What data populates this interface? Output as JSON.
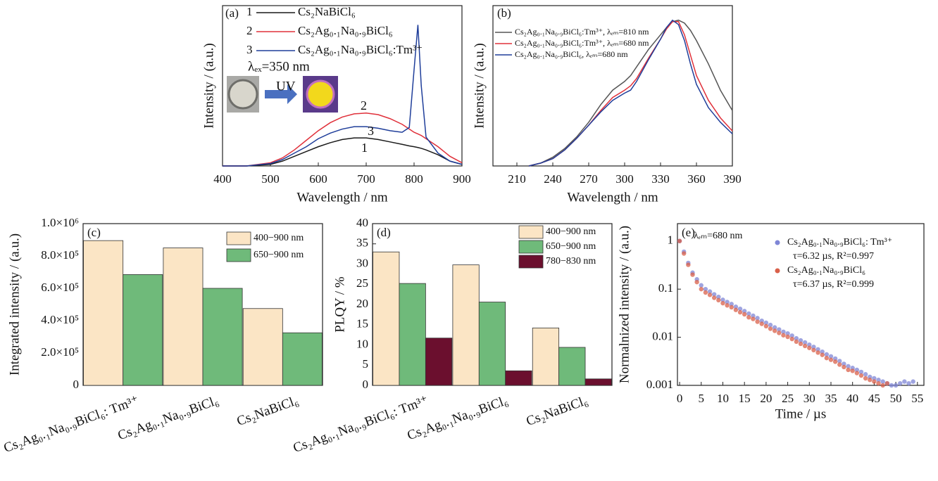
{
  "chart_data": [
    {
      "type": "line",
      "panel_label": "(a)",
      "x_label": "Wavelength / nm",
      "y_label": "Intensity / (a.u.)",
      "xlim": [
        400,
        900
      ],
      "xticks": [
        400,
        500,
        600,
        700,
        800,
        900
      ],
      "ylim": [
        0,
        100
      ],
      "x": [
        400,
        450,
        500,
        525,
        550,
        575,
        600,
        625,
        650,
        675,
        700,
        725,
        750,
        775,
        790,
        800,
        808,
        815,
        825,
        850,
        875,
        900
      ],
      "curve_labels": [
        "1",
        "2",
        "3"
      ],
      "annotations": [
        "λₑₓ=350 nm",
        "UV"
      ],
      "series": [
        {
          "name": "Cs₂NaBiCl₆",
          "color": "#1a1a1a",
          "values": [
            0,
            0,
            1,
            3,
            6,
            9,
            12,
            14.5,
            16.5,
            17.5,
            17.5,
            16.5,
            15,
            13.5,
            12.5,
            12,
            11.5,
            11,
            10,
            7,
            3,
            1
          ]
        },
        {
          "name": "Cs₂Ag₀.₁Na₀.₉BiCl₆",
          "color": "#e0303a",
          "values": [
            0,
            0,
            2,
            5,
            10,
            16,
            22,
            27,
            30.5,
            32.5,
            33,
            32,
            29.5,
            26,
            23,
            21,
            20,
            19,
            17,
            12,
            6,
            2
          ]
        },
        {
          "name": "Cs₂Ag₀.₁Na₀.₉BiCl₆:Tm³⁺",
          "color": "#1f3e9a",
          "values": [
            0,
            0,
            1.5,
            4,
            8,
            12,
            17,
            20.5,
            23,
            24.5,
            24.5,
            23.5,
            22,
            21,
            24,
            60,
            88,
            50,
            18,
            8,
            3,
            1
          ]
        }
      ]
    },
    {
      "type": "line",
      "panel_label": "(b)",
      "x_label": "Wavelength / nm",
      "y_label": "Intensity / (a.u.)",
      "xlim": [
        190,
        390
      ],
      "xticks": [
        210,
        240,
        270,
        300,
        330,
        360,
        390
      ],
      "ylim": [
        0,
        1.1
      ],
      "x": [
        220,
        230,
        240,
        250,
        260,
        270,
        280,
        290,
        300,
        305,
        310,
        320,
        330,
        335,
        340,
        345,
        350,
        355,
        360,
        370,
        380,
        390
      ],
      "series": [
        {
          "name": "Cs₂Ag₀.₁Na₀.₉BiCl₆:Tm³⁺, λₑₘ=810 nm",
          "color": "#555555",
          "values": [
            0,
            0.02,
            0.06,
            0.12,
            0.2,
            0.3,
            0.42,
            0.52,
            0.58,
            0.62,
            0.68,
            0.8,
            0.9,
            0.95,
            0.99,
            1.0,
            0.98,
            0.93,
            0.86,
            0.7,
            0.52,
            0.38
          ]
        },
        {
          "name": "Cs₂Ag₀.₁Na₀.₉BiCl₆:Tm³⁺, λₑₘ=680 nm",
          "color": "#e0303a",
          "values": [
            0,
            0.02,
            0.05,
            0.11,
            0.19,
            0.28,
            0.38,
            0.47,
            0.52,
            0.55,
            0.6,
            0.74,
            0.87,
            0.94,
            0.99,
            0.99,
            0.9,
            0.76,
            0.62,
            0.45,
            0.33,
            0.24
          ]
        },
        {
          "name": "Cs₂Ag₀.₁Na₀.₉BiCl₆, λₑₘ=680 nm",
          "color": "#1f3e9a",
          "values": [
            0,
            0.02,
            0.05,
            0.11,
            0.19,
            0.28,
            0.37,
            0.45,
            0.5,
            0.52,
            0.58,
            0.73,
            0.87,
            0.95,
            1.0,
            0.97,
            0.86,
            0.7,
            0.56,
            0.4,
            0.3,
            0.22
          ]
        }
      ]
    },
    {
      "type": "bar",
      "panel_label": "(c)",
      "y_label": "Integrated intensity / (a.u.)",
      "ylim": [
        0,
        1000000
      ],
      "yticks": [
        0,
        {
          "value": 200000,
          "label": "2.0×10⁵"
        },
        {
          "value": 400000,
          "label": "4.0×10⁵"
        },
        {
          "value": 600000,
          "label": "6.0×10⁵"
        },
        {
          "value": 800000,
          "label": "8.0×10⁵"
        },
        {
          "value": 1000000,
          "label": "1.0×10⁶"
        }
      ],
      "categories": [
        "Cs₂Ag₀.₁Na₀.₉BiCl₆: Tm³⁺",
        "Cs₂Ag₀.₁Na₀.₉BiCl₆",
        "Cs₂NaBiCl₆"
      ],
      "series": [
        {
          "name": "400−900 nm",
          "color": "#fbe5c5",
          "values": [
            895000,
            850000,
            475000
          ]
        },
        {
          "name": "650−900 nm",
          "color": "#6fba7a",
          "values": [
            685000,
            600000,
            325000
          ]
        }
      ]
    },
    {
      "type": "bar",
      "panel_label": "(d)",
      "y_label": "PLQY / %",
      "ylim": [
        0,
        40
      ],
      "yticks": [
        0,
        5,
        10,
        15,
        20,
        25,
        30,
        35,
        40
      ],
      "categories": [
        "Cs₂Ag₀.₁Na₀.₉BiCl₆: Tm³⁺",
        "Cs₂Ag₀.₁Na₀.₉BiCl₆",
        "Cs₂NaBiCl₆"
      ],
      "series": [
        {
          "name": "400−900 nm",
          "color": "#fbe5c5",
          "values": [
            33,
            29.8,
            14.2
          ]
        },
        {
          "name": "650−900 nm",
          "color": "#6fba7a",
          "values": [
            25.2,
            20.6,
            9.4
          ]
        },
        {
          "name": "780−830 nm",
          "color": "#6b0f2e",
          "values": [
            11.7,
            3.6,
            1.6
          ]
        }
      ]
    },
    {
      "type": "scatter",
      "panel_label": "(e)",
      "x_label": "Time / µs",
      "y_label": "Normalnized intensity / (a.u.)",
      "log_y": true,
      "xlim": [
        -0.5,
        56.5
      ],
      "xticks": [
        0,
        5,
        10,
        15,
        20,
        25,
        30,
        35,
        40,
        45,
        50,
        55
      ],
      "ylim": [
        0.001,
        2.3
      ],
      "yticks": [
        0.001,
        0.01,
        0.1,
        1
      ],
      "annotations": [
        "λₑₘ=680 nm",
        "τ=6.32 µs, R²=0.997",
        "τ=6.37 µs, R²=0.999"
      ],
      "series": [
        {
          "name": "Cs₂Ag₀.₁Na₀.₉BiCl₆: Tm³⁺",
          "color": "#7f86d6",
          "x": [
            0,
            1,
            2,
            3,
            4,
            5,
            6,
            7,
            8,
            9,
            10,
            11,
            12,
            13,
            14,
            15,
            16,
            17,
            18,
            19,
            20,
            21,
            22,
            23,
            24,
            25,
            26,
            27,
            28,
            29,
            30,
            31,
            32,
            33,
            34,
            35,
            36,
            37,
            38,
            39,
            40,
            41,
            42,
            43,
            44,
            45,
            46,
            47,
            48,
            49,
            50,
            51,
            52,
            53,
            54
          ],
          "values": [
            1,
            0.6,
            0.35,
            0.22,
            0.16,
            0.12,
            0.1,
            0.089,
            0.078,
            0.069,
            0.06,
            0.054,
            0.049,
            0.043,
            0.039,
            0.035,
            0.031,
            0.028,
            0.025,
            0.022,
            0.02,
            0.018,
            0.016,
            0.0145,
            0.013,
            0.012,
            0.0108,
            0.0095,
            0.0086,
            0.0078,
            0.007,
            0.0063,
            0.0056,
            0.005,
            0.0044,
            0.004,
            0.0036,
            0.0032,
            0.0028,
            0.0025,
            0.0023,
            0.0021,
            0.0019,
            0.0017,
            0.0015,
            0.0014,
            0.0013,
            0.0012,
            0.0011,
            0.001,
            0.001,
            0.0011,
            0.0012,
            0.0011,
            0.0012
          ]
        },
        {
          "name": "Cs₂Ag₀.₁Na₀.₉BiCl₆",
          "color": "#d9604a",
          "x": [
            0,
            1,
            2,
            3,
            4,
            5,
            6,
            7,
            8,
            9,
            10,
            11,
            12,
            13,
            14,
            15,
            16,
            17,
            18,
            19,
            20,
            21,
            22,
            23,
            24,
            25,
            26,
            27,
            28,
            29,
            30,
            31,
            32,
            33,
            34,
            35,
            36,
            37,
            38,
            39,
            40,
            41,
            42,
            43,
            44,
            45,
            46,
            47,
            48
          ],
          "values": [
            1,
            0.55,
            0.32,
            0.2,
            0.14,
            0.1,
            0.085,
            0.076,
            0.066,
            0.059,
            0.051,
            0.046,
            0.042,
            0.037,
            0.033,
            0.03,
            0.026,
            0.024,
            0.021,
            0.019,
            0.017,
            0.015,
            0.0136,
            0.0123,
            0.011,
            0.0102,
            0.0092,
            0.0081,
            0.0073,
            0.0066,
            0.006,
            0.0054,
            0.0048,
            0.0043,
            0.0037,
            0.0034,
            0.0031,
            0.0027,
            0.0024,
            0.0021,
            0.002,
            0.0018,
            0.0016,
            0.0014,
            0.0013,
            0.0012,
            0.0011,
            0.001,
            0.0011
          ]
        }
      ]
    }
  ]
}
